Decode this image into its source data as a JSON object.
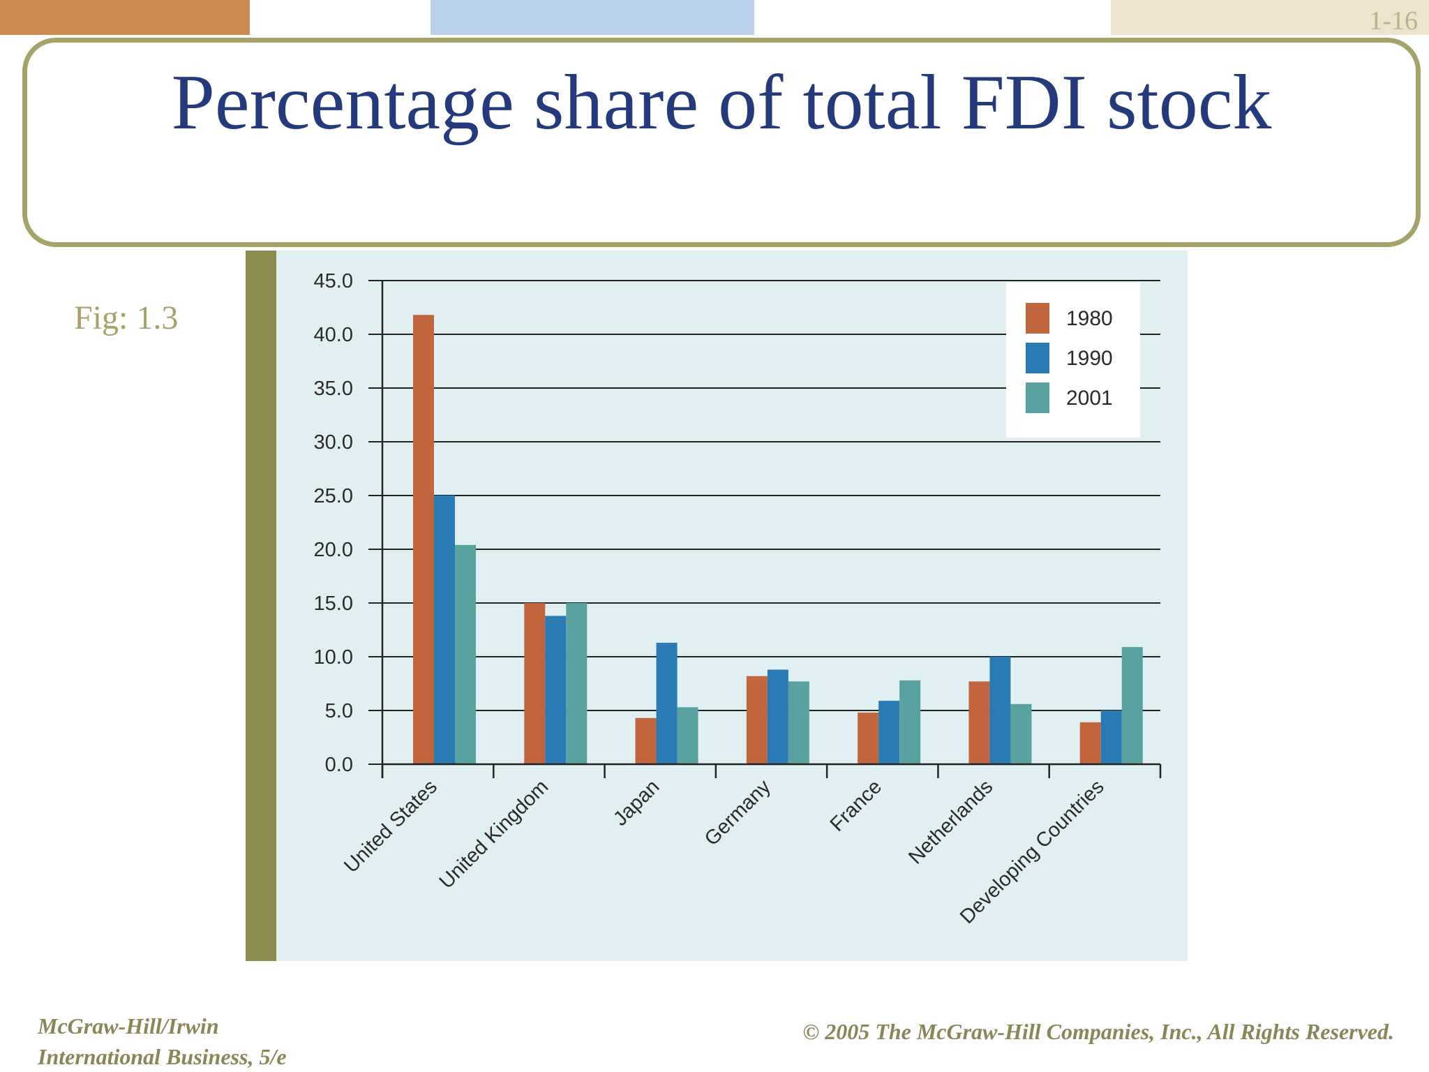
{
  "slide": {
    "number": "1-16",
    "title": "Percentage share of total FDI stock",
    "fig_label": "Fig: 1.3",
    "footer_left_line1": "McGraw-Hill/Irwin",
    "footer_left_line2": "International Business, 5/e",
    "footer_right": "© 2005 The McGraw-Hill Companies, Inc., All Rights Reserved."
  },
  "colors": {
    "series_1980": "#c0653d",
    "series_1990": "#2a7ab3",
    "series_2001": "#5aa29f",
    "title": "#243a7d",
    "frame": "#a6a36a",
    "chart_background": "#e0f0f2",
    "top_bar_orange": "#cd8a4f",
    "top_bar_blue": "#b9d2ea",
    "top_bar_beige": "#efe2cf"
  },
  "chart_data": {
    "type": "bar",
    "categories": [
      "United States",
      "United Kingdom",
      "Japan",
      "Germany",
      "France",
      "Netherlands",
      "Developing Countries"
    ],
    "series": [
      {
        "name": "1980",
        "values": [
          41.8,
          15.0,
          4.3,
          8.2,
          4.8,
          7.7,
          3.9
        ]
      },
      {
        "name": "1990",
        "values": [
          25.0,
          13.8,
          11.3,
          8.8,
          5.9,
          10.0,
          5.0
        ]
      },
      {
        "name": "2001",
        "values": [
          20.4,
          15.0,
          5.3,
          7.7,
          7.8,
          5.6,
          10.9
        ]
      }
    ],
    "ylim": [
      0,
      45
    ],
    "yticks": [
      "0.0",
      "5.0",
      "10.0",
      "15.0",
      "20.0",
      "25.0",
      "30.0",
      "35.0",
      "40.0",
      "45.0"
    ],
    "grid": true,
    "legend_position": "top-right"
  }
}
